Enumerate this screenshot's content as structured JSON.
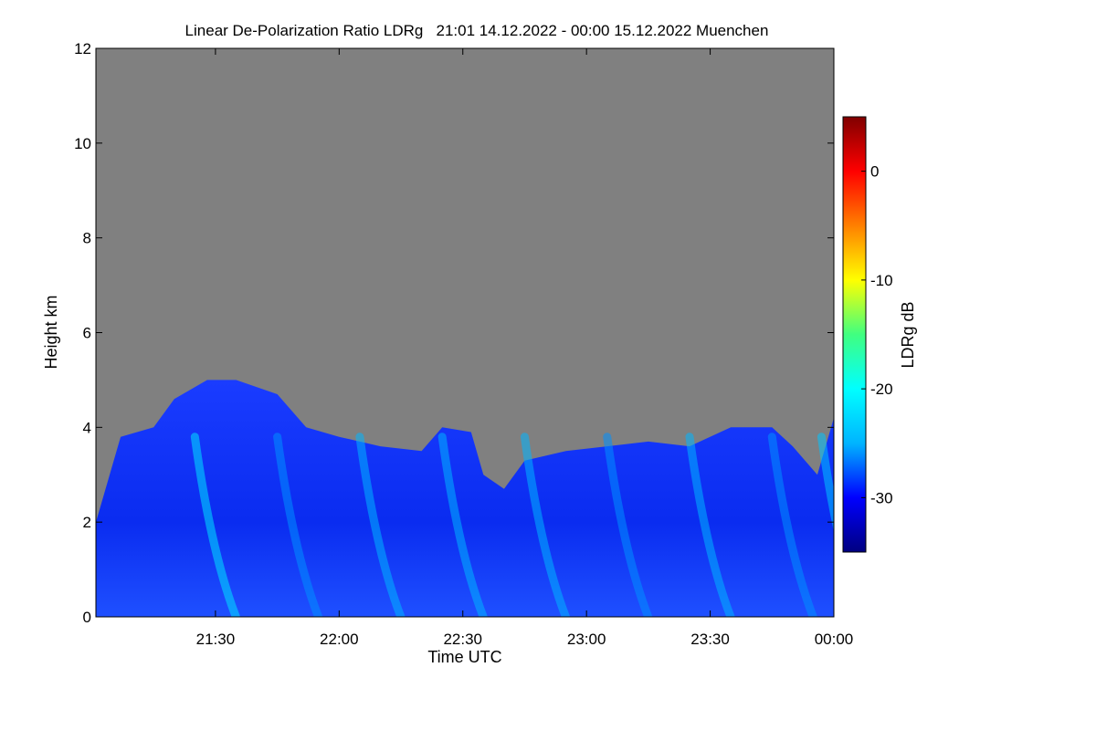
{
  "chart_data": {
    "type": "heatmap",
    "title": "Linear De-Polarization Ratio LDRg   21:01 14.12.2022 - 00:00 15.12.2022 Muenchen",
    "xlabel": "Time UTC",
    "ylabel": "Height km",
    "colorbar_label": "LDRg dB",
    "x_range": [
      "21:01",
      "00:00"
    ],
    "x_ticks": [
      {
        "time": "21:30",
        "label": "21:30"
      },
      {
        "time": "22:00",
        "label": "22:00"
      },
      {
        "time": "22:30",
        "label": "22:30"
      },
      {
        "time": "23:00",
        "label": "23:00"
      },
      {
        "time": "23:30",
        "label": "23:30"
      },
      {
        "time": "00:00",
        "label": "00:00"
      }
    ],
    "y_range": [
      0,
      12
    ],
    "y_ticks": [
      0,
      2,
      4,
      6,
      8,
      10,
      12
    ],
    "colorbar_range": [
      -35,
      5
    ],
    "colorbar_ticks": [
      0,
      -10,
      -20,
      -30
    ],
    "colormap": [
      "#000080",
      "#0000ff",
      "#00b4ff",
      "#00ffff",
      "#40ff80",
      "#ffff00",
      "#ff8000",
      "#ff0000",
      "#800000"
    ],
    "no_data_color": "#808080",
    "grid": false,
    "cloud_top_km": [
      {
        "time": "21:01",
        "top": 2.0
      },
      {
        "time": "21:07",
        "top": 3.8
      },
      {
        "time": "21:15",
        "top": 4.0
      },
      {
        "time": "21:20",
        "top": 4.6
      },
      {
        "time": "21:28",
        "top": 5.0
      },
      {
        "time": "21:35",
        "top": 5.0
      },
      {
        "time": "21:45",
        "top": 4.7
      },
      {
        "time": "21:52",
        "top": 4.0
      },
      {
        "time": "22:00",
        "top": 3.8
      },
      {
        "time": "22:10",
        "top": 3.6
      },
      {
        "time": "22:20",
        "top": 3.5
      },
      {
        "time": "22:25",
        "top": 4.0
      },
      {
        "time": "22:32",
        "top": 3.9
      },
      {
        "time": "22:35",
        "top": 3.0
      },
      {
        "time": "22:40",
        "top": 2.7
      },
      {
        "time": "22:45",
        "top": 3.3
      },
      {
        "time": "22:55",
        "top": 3.5
      },
      {
        "time": "23:05",
        "top": 3.6
      },
      {
        "time": "23:15",
        "top": 3.7
      },
      {
        "time": "23:25",
        "top": 3.6
      },
      {
        "time": "23:35",
        "top": 4.0
      },
      {
        "time": "23:45",
        "top": 4.0
      },
      {
        "time": "23:50",
        "top": 3.6
      },
      {
        "time": "23:56",
        "top": 3.0
      },
      {
        "time": "00:00",
        "top": 4.2
      }
    ],
    "streaks": [
      {
        "time": "21:25",
        "value": -22
      },
      {
        "time": "21:45",
        "value": -26
      },
      {
        "time": "22:05",
        "value": -25
      },
      {
        "time": "22:25",
        "value": -25
      },
      {
        "time": "22:45",
        "value": -25
      },
      {
        "time": "23:05",
        "value": -26
      },
      {
        "time": "23:25",
        "value": -25
      },
      {
        "time": "23:45",
        "value": -26
      },
      {
        "time": "23:57",
        "value": -24
      }
    ]
  }
}
